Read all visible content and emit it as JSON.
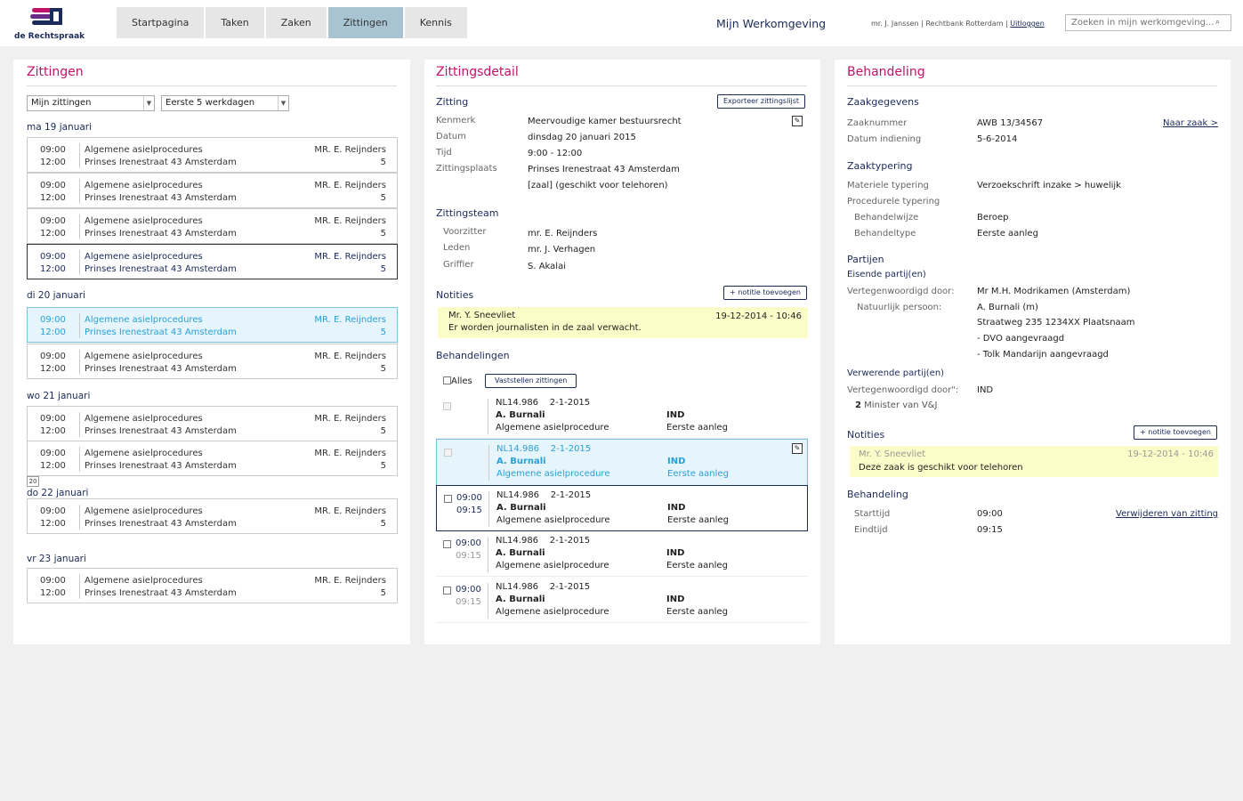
{
  "brand": {
    "logo_text": "de Rechtspraak"
  },
  "nav": {
    "tabs": [
      "Startpagina",
      "Taken",
      "Zaken",
      "Zittingen",
      "Kennis"
    ],
    "active": "Zittingen"
  },
  "header": {
    "title": "Mijn Werkomgeving",
    "user": "mr. J. Janssen",
    "court": "Rechtbank Rotterdam",
    "logout": "Uitloggen",
    "search_placeholder": "Zoeken in mijn werkomgeving..."
  },
  "zittingen": {
    "title": "Zittingen",
    "filter1": "Mijn zittingen",
    "filter2": "Eerste 5 werkdagen",
    "days": [
      "ma 19 januari",
      "di 20 januari",
      "wo 21 januari",
      "do 22 januari",
      "vr 23 januari"
    ],
    "badge": "20",
    "session": {
      "start": "09:00",
      "end": "12:00",
      "type": "Algemene asielprocedures",
      "location": "Prinses Irenestraat 43 Amsterdam",
      "judge": "MR. E. Reijnders",
      "room": "5"
    }
  },
  "detail": {
    "title": "Zittingsdetail",
    "zitting_h": "Zitting",
    "export": "Exporteer zittingslijst",
    "kenmerk_l": "Kenmerk",
    "kenmerk": "Meervoudige kamer bestuursrecht",
    "datum_l": "Datum",
    "datum": "dinsdag 20 januari 2015",
    "tijd_l": "Tijd",
    "tijd": "9:00 - 12:00",
    "plaats_l": "Zittingsplaats",
    "plaats": "Prinses Irenestraat 43  Amsterdam",
    "plaats2": "[zaal] (geschikt voor telehoren)",
    "team_h": "Zittingsteam",
    "voorzitter_l": "Voorzitter",
    "voorzitter": "mr. E. Reijnders",
    "leden_l": "Leden",
    "leden": "mr. J. Verhagen",
    "griffier_l": "Griffier",
    "griffier": "S. Akalai",
    "notities_h": "Notities",
    "add_note": "+ notitie toevoegen",
    "note_author": "Mr. Y. Sneevliet",
    "note_date": "19-12-2014 - 10:46",
    "note_text": "Er worden journalisten in de zaal verwacht.",
    "beh_h": "Behandelingen",
    "alles": "Alles",
    "vaststellen": "Vaststellen zittingen",
    "beh": {
      "nr": "NL14.986",
      "date": "2-1-2015",
      "name": "A. Burnali",
      "proc": "Algemene asielprocedure",
      "party": "IND",
      "instance": "Eerste aanleg",
      "start": "09:00",
      "end": "09:15"
    }
  },
  "behandeling": {
    "title": "Behandeling",
    "zaak_h": "Zaakgegevens",
    "nr_l": "Zaaknummer",
    "nr": "AWB 13/34567",
    "naar_zaak": "Naar zaak >",
    "ind_l": "Datum indiening",
    "ind": "5-6-2014",
    "typ_h": "Zaaktypering",
    "mat_l": "Materiele typering",
    "mat": "Verzoekschrift inzake > huwelijk",
    "proc_l": "Procedurele typering",
    "bw_l": "Behandelwijze",
    "bw": "Beroep",
    "bt_l": "Behandeltype",
    "bt": "Eerste aanleg",
    "part_h": "Partijen",
    "eis_h": "Eisende partij(en)",
    "vert_l": "Vertegenwoordigd door:",
    "vert": "Mr M.H. Modrikamen (Amsterdam)",
    "np_l": "Natuurlijk persoon:",
    "np": "A. Burnali (m)",
    "adres": "Straatweg 235  1234XX  Plaatsnaam",
    "dvo": "- DVO aangevraagd",
    "tolk": "- Tolk Mandarijn aangevraagd",
    "verw_h": "Verwerende partij(en)",
    "vert2_l": "Vertegenwoordigd door\":",
    "vert2": "IND",
    "min_n": "2",
    "min": "Minister van V&J",
    "notities_h": "Notities",
    "add_note": "+ notitie toevoegen",
    "note_author": "Mr. Y. Sneevliet",
    "note_date": "19-12-2014 - 10:46",
    "note_text": "Deze zaak is geschikt voor telehoren",
    "beh_h": "Behandeling",
    "start_l": "Starttijd",
    "start": "09:00",
    "remove": "Verwijderen van zitting",
    "eind_l": "Eindtijd",
    "eind": "09:15"
  }
}
